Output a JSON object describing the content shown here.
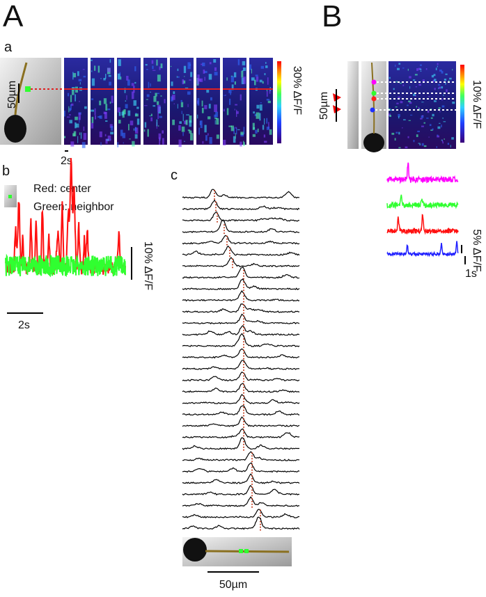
{
  "panel_A": {
    "label": "A",
    "a": {
      "label": "a",
      "scale_bar": "50µm",
      "colorbar_label": "30% ΔF/F",
      "time_bar": "2s"
    },
    "b": {
      "label": "b",
      "legend": [
        "Red: center",
        "Green: neighbor"
      ],
      "amplitude_bar": "10% ΔF/F",
      "time_bar": "2s"
    },
    "c": {
      "label": "c",
      "scale_bar": "50µm"
    }
  },
  "panel_B": {
    "label": "B",
    "scale_bar": "50µm",
    "colorbar_label": "10% ΔF/F",
    "amplitude_bar": "5% ΔF/F",
    "time_bar": "1s"
  }
}
